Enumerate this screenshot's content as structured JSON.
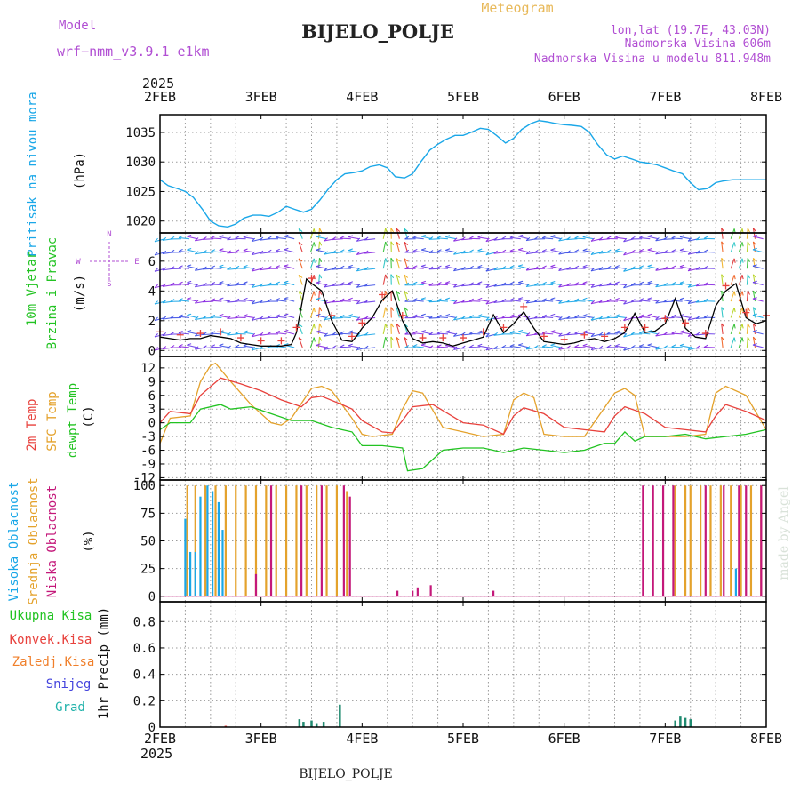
{
  "header": {
    "model_label": "Model",
    "model_name": "wrf−nmm_v3.9.1  e1km",
    "title": "BIJELO_POLJE",
    "subtitle": "Meteogram",
    "coords": "lon,lat (19.7E, 43.03N)",
    "elevation": "Nadmorska Visina 606m",
    "model_elevation": "Nadmorska Visina u modelu 811.948m",
    "footer_title": "BIJELO_POLJE",
    "watermark": "made by Angel",
    "year_top": "2025",
    "year_bottom": "2025"
  },
  "colors": {
    "pressure": "#1aa7e8",
    "temp2m": "#e8413c",
    "sfc": "#e4a22c",
    "dew": "#22c322",
    "wind_speed": "#000000",
    "wind_cross": "#e8413c",
    "cloud_high": "#1aa7e8",
    "cloud_mid": "#e4a22c",
    "cloud_low": "#c4187a",
    "precip_total": "#22c322",
    "precip_conv": "#e8413c",
    "precip_freeze": "#f07f2a",
    "precip_snow": "#4444dd",
    "precip_hail": "#20b2aa",
    "header_purple": "#b14fd3",
    "header_orange": "#e8b95a"
  },
  "chart_data": {
    "type": "meteogram",
    "time_axis": {
      "labels": [
        "2FEB",
        "3FEB",
        "4FEB",
        "5FEB",
        "6FEB",
        "7FEB",
        "8FEB"
      ],
      "range_days": [
        0,
        6
      ]
    },
    "panels": [
      {
        "id": "pressure",
        "type": "line",
        "ylabel": [
          "Pritisak na nivou mora",
          "(hPa)"
        ],
        "yticks": [
          1020,
          1025,
          1030,
          1035
        ],
        "ylim": [
          1018,
          1038
        ],
        "series": [
          {
            "name": "Pritisak na nivou mora",
            "x": [
              0,
              0.08,
              0.17,
              0.25,
              0.33,
              0.42,
              0.5,
              0.58,
              0.67,
              0.75,
              0.83,
              0.92,
              1.0,
              1.08,
              1.17,
              1.25,
              1.33,
              1.42,
              1.5,
              1.58,
              1.67,
              1.75,
              1.83,
              1.92,
              2.0,
              2.08,
              2.17,
              2.25,
              2.33,
              2.42,
              2.5,
              2.58,
              2.67,
              2.75,
              2.83,
              2.92,
              3.0,
              3.08,
              3.17,
              3.25,
              3.33,
              3.42,
              3.5,
              3.58,
              3.67,
              3.75,
              3.83,
              3.92,
              4.0,
              4.08,
              4.17,
              4.25,
              4.33,
              4.42,
              4.5,
              4.58,
              4.67,
              4.75,
              4.83,
              4.92,
              5.0,
              5.08,
              5.17,
              5.25,
              5.33,
              5.42,
              5.5,
              5.58,
              5.67,
              5.75,
              5.83,
              5.92,
              6.0
            ],
            "y": [
              1027,
              1026,
              1025.5,
              1025,
              1024,
              1022,
              1020,
              1019.2,
              1019,
              1019.5,
              1020.5,
              1021,
              1021,
              1020.8,
              1021.5,
              1022.5,
              1022,
              1021.5,
              1022,
              1023.5,
              1025.5,
              1027,
              1028,
              1028.2,
              1028.5,
              1029.2,
              1029.5,
              1029,
              1027.5,
              1027.3,
              1028,
              1030,
              1032,
              1033,
              1033.8,
              1034.5,
              1034.5,
              1035,
              1035.7,
              1035.5,
              1034.5,
              1033.2,
              1034,
              1035.5,
              1036.5,
              1037,
              1036.8,
              1036.5,
              1036.3,
              1036.2,
              1036,
              1035,
              1033,
              1031.2,
              1030.5,
              1031,
              1030.5,
              1030,
              1029.8,
              1029.5,
              1029,
              1028.5,
              1028,
              1026.5,
              1025.3,
              1025.5,
              1026.5,
              1026.8,
              1027,
              1027,
              1027,
              1027,
              1027
            ]
          }
        ]
      },
      {
        "id": "wind",
        "type": "line+barbs",
        "ylabel": [
          "10m Vjetar",
          "Brzina i Pravac",
          "(m/s)"
        ],
        "compass": [
          "N",
          "W",
          "E",
          "S"
        ],
        "yticks": [
          0,
          2,
          4,
          6
        ],
        "ylim": [
          -0.4,
          7.9
        ],
        "series": [
          {
            "name": "Brzina",
            "x": [
              0,
              0.1,
              0.2,
              0.3,
              0.4,
              0.5,
              0.6,
              0.7,
              0.8,
              0.9,
              1.0,
              1.1,
              1.2,
              1.3,
              1.35,
              1.45,
              1.5,
              1.6,
              1.7,
              1.8,
              1.9,
              1.95,
              2.0,
              2.1,
              2.2,
              2.3,
              2.4,
              2.5,
              2.6,
              2.7,
              2.8,
              2.9,
              3.0,
              3.1,
              3.2,
              3.3,
              3.4,
              3.5,
              3.6,
              3.7,
              3.8,
              3.9,
              4.0,
              4.1,
              4.2,
              4.3,
              4.4,
              4.5,
              4.6,
              4.7,
              4.8,
              4.9,
              5.0,
              5.1,
              5.2,
              5.3,
              5.4,
              5.5,
              5.6,
              5.7,
              5.8,
              5.9,
              6.0
            ],
            "y": [
              0.9,
              0.8,
              0.7,
              0.8,
              0.8,
              1.0,
              0.9,
              0.8,
              0.5,
              0.4,
              0.3,
              0.3,
              0.3,
              0.4,
              1.2,
              4.8,
              4.5,
              4.0,
              2.0,
              0.7,
              0.6,
              1.0,
              1.5,
              2.2,
              3.4,
              4.0,
              2.0,
              0.8,
              0.5,
              0.6,
              0.5,
              0.3,
              0.5,
              0.7,
              0.9,
              2.4,
              1.2,
              1.8,
              2.6,
              1.5,
              0.6,
              0.5,
              0.4,
              0.5,
              0.7,
              0.8,
              0.6,
              0.8,
              1.2,
              2.5,
              1.2,
              1.3,
              1.8,
              3.5,
              1.5,
              0.9,
              0.8,
              3.0,
              4.0,
              4.5,
              2.2,
              1.8,
              2.0
            ]
          }
        ]
      },
      {
        "id": "temperature",
        "type": "line",
        "ylabel": [
          "2m Temp",
          "SFC Temp",
          "dewpt Temp",
          "(C)"
        ],
        "yticks": [
          -12,
          -9,
          -6,
          -3,
          0,
          3,
          6,
          9,
          12
        ],
        "ylim": [
          -12.5,
          14.5
        ],
        "series": [
          {
            "name": "2m Temp",
            "x": [
              0,
              0.1,
              0.3,
              0.4,
              0.6,
              0.8,
              1.0,
              1.2,
              1.4,
              1.5,
              1.6,
              1.8,
              1.9,
              2.0,
              2.2,
              2.3,
              2.4,
              2.5,
              2.7,
              3.0,
              3.2,
              3.4,
              3.5,
              3.6,
              3.8,
              4.0,
              4.2,
              4.4,
              4.5,
              4.6,
              4.8,
              5.0,
              5.2,
              5.4,
              5.5,
              5.6,
              5.8,
              6.0
            ],
            "y": [
              0,
              2.5,
              2.0,
              6.0,
              9.8,
              8.5,
              7.0,
              5.0,
              3.5,
              5.5,
              5.8,
              4.0,
              3.0,
              0.5,
              -2.0,
              -2.2,
              0.5,
              3.5,
              4.0,
              0,
              -0.5,
              -2.5,
              1.5,
              3.3,
              2.0,
              -1.0,
              -1.5,
              -2.0,
              1.5,
              3.5,
              2.0,
              -1.0,
              -1.5,
              -2.0,
              1.5,
              4.0,
              2.5,
              0.5
            ]
          },
          {
            "name": "SFC Temp",
            "x": [
              0,
              0.1,
              0.3,
              0.4,
              0.5,
              0.55,
              0.7,
              0.9,
              1.1,
              1.2,
              1.3,
              1.5,
              1.6,
              1.7,
              1.9,
              2.0,
              2.1,
              2.3,
              2.4,
              2.5,
              2.6,
              2.8,
              3.0,
              3.2,
              3.4,
              3.5,
              3.6,
              3.7,
              3.8,
              4.0,
              4.2,
              4.5,
              4.6,
              4.7,
              4.8,
              5.0,
              5.2,
              5.4,
              5.5,
              5.6,
              5.8,
              6.0
            ],
            "y": [
              -4.5,
              1.0,
              1.5,
              9.0,
              12.5,
              13.0,
              9.0,
              4.0,
              0,
              -0.5,
              1.0,
              7.5,
              8.0,
              7.0,
              1.0,
              -2.5,
              -3.0,
              -2.5,
              3.0,
              7.0,
              6.5,
              -1.0,
              -2.0,
              -3.0,
              -2.5,
              5.0,
              6.5,
              5.5,
              -2.5,
              -3.0,
              -3.0,
              6.5,
              7.5,
              6.0,
              -3.0,
              -3.0,
              -3.0,
              -2.5,
              6.5,
              8.0,
              6.0,
              -1.5
            ]
          },
          {
            "name": "dewpt Temp",
            "x": [
              0,
              0.1,
              0.3,
              0.4,
              0.6,
              0.7,
              0.9,
              1.1,
              1.3,
              1.5,
              1.7,
              1.9,
              2.0,
              2.2,
              2.4,
              2.45,
              2.6,
              2.8,
              3.0,
              3.2,
              3.4,
              3.6,
              3.8,
              4.0,
              4.2,
              4.4,
              4.5,
              4.6,
              4.7,
              4.8,
              5.0,
              5.2,
              5.4,
              5.6,
              5.8,
              6.0
            ],
            "y": [
              -1.5,
              0,
              0,
              3.0,
              4.0,
              3.0,
              3.5,
              2.0,
              0.5,
              0.5,
              -1.0,
              -2.0,
              -5.0,
              -5.0,
              -5.5,
              -10.5,
              -10.0,
              -6.0,
              -5.5,
              -5.5,
              -6.5,
              -5.5,
              -6.0,
              -6.5,
              -6.0,
              -4.5,
              -4.5,
              -2.0,
              -4.0,
              -3.0,
              -3.0,
              -2.5,
              -3.5,
              -3.0,
              -2.5,
              -1.5
            ]
          }
        ]
      },
      {
        "id": "clouds",
        "type": "bar",
        "ylabel": [
          "Visoka Oblacnost",
          "Srednja Oblacnost",
          "Niska Oblacnost",
          "(%)"
        ],
        "yticks": [
          0,
          25,
          50,
          75,
          100
        ],
        "ylim": [
          -5,
          105
        ],
        "series": [
          {
            "name": "Visoka Oblacnost",
            "x": [
              0.25,
              0.3,
              0.35,
              0.4,
              0.47,
              0.52,
              0.58,
              0.62,
              5.7
            ],
            "y": [
              70,
              40,
              40,
              90,
              100,
              95,
              85,
              60,
              25
            ]
          },
          {
            "name": "Srednja Oblacnost",
            "x": [
              0.27,
              0.35,
              0.45,
              0.55,
              0.65,
              0.75,
              0.85,
              0.95,
              1.05,
              1.15,
              1.25,
              1.35,
              1.45,
              1.55,
              1.65,
              1.75,
              1.85,
              5.1,
              5.2,
              5.25,
              5.35,
              5.45,
              5.55,
              5.65,
              5.75,
              5.85,
              5.95
            ],
            "y": [
              100,
              100,
              100,
              100,
              100,
              100,
              100,
              100,
              100,
              100,
              100,
              100,
              100,
              100,
              100,
              100,
              95,
              100,
              100,
              100,
              100,
              100,
              100,
              100,
              100,
              100,
              100
            ]
          },
          {
            "name": "Niska Oblacnost",
            "x": [
              0.95,
              1.1,
              1.4,
              1.6,
              1.82,
              1.88,
              2.35,
              2.5,
              2.55,
              2.68,
              3.3,
              4.78,
              4.88,
              4.98,
              5.08,
              5.4,
              5.58,
              5.73,
              5.8,
              5.95
            ],
            "y": [
              20,
              100,
              100,
              100,
              100,
              90,
              5,
              5,
              8,
              10,
              5,
              100,
              100,
              100,
              100,
              100,
              100,
              100,
              100,
              100
            ]
          }
        ]
      },
      {
        "id": "precip",
        "type": "bar",
        "ylabel": [
          "1hr Precip (mm)"
        ],
        "legend": [
          "Ukupna Kisa",
          "Konvek.Kisa",
          "Zaledj.Kisa",
          "Snijeg",
          "Grad"
        ],
        "yticks": [
          0,
          0.2,
          0.4,
          0.6,
          0.8
        ],
        "ylim": [
          0,
          0.95
        ],
        "series": [
          {
            "name": "Ukupna Kisa",
            "x": [
              1.38,
              1.42,
              1.5,
              1.55,
              1.62,
              1.78,
              5.1,
              5.15,
              5.2,
              5.25
            ],
            "y": [
              0.06,
              0.04,
              0.05,
              0.03,
              0.04,
              0.17,
              0.05,
              0.08,
              0.07,
              0.06
            ]
          },
          {
            "name": "Konvek.Kisa",
            "x": [
              0.65
            ],
            "y": [
              0.01
            ]
          },
          {
            "name": "Zaledj.Kisa",
            "x": [],
            "y": []
          },
          {
            "name": "Snijeg",
            "x": [],
            "y": []
          },
          {
            "name": "Grad",
            "x": [],
            "y": []
          }
        ]
      }
    ]
  }
}
